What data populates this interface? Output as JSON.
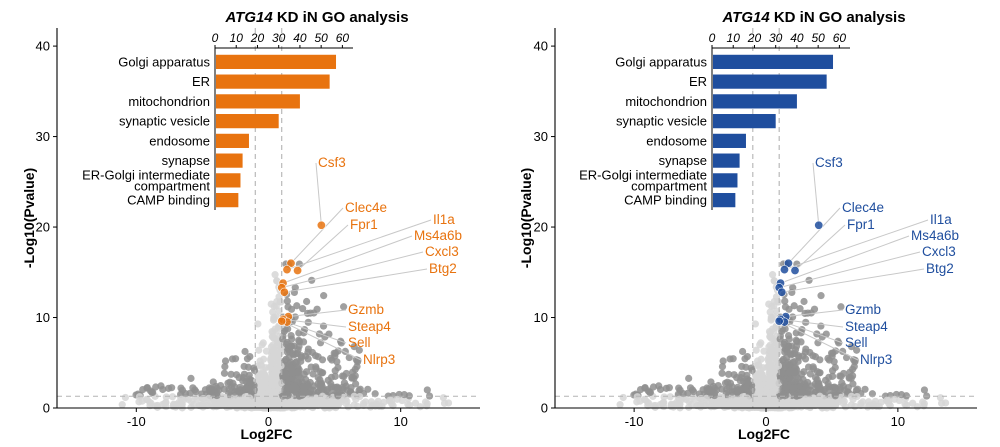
{
  "chart_data": [
    {
      "type": "scatter",
      "panel": "left",
      "accent_color": "#E8730F",
      "title_italic": "ATG14",
      "title_rest": " KD iN GO analysis",
      "xlabel": "Log2FC",
      "ylabel": "-Log10(Pvalue)",
      "xlim": [
        -16,
        16
      ],
      "ylim": [
        0,
        42
      ],
      "xticks": [
        -10,
        0,
        10
      ],
      "yticks": [
        0,
        10,
        20,
        30,
        40
      ],
      "thresholds": {
        "log2fc": [
          -1,
          1
        ],
        "neglog10p": 1.3
      },
      "highlighted_genes": [
        {
          "name": "Csf3",
          "x": 4.0,
          "y": 20.2
        },
        {
          "name": "Clec4e",
          "x": 1.7,
          "y": 16.0
        },
        {
          "name": "Fpr1",
          "x": 2.2,
          "y": 15.2
        },
        {
          "name": "Il1a",
          "x": 1.4,
          "y": 15.3
        },
        {
          "name": "Ms4a6b",
          "x": 1.1,
          "y": 13.8
        },
        {
          "name": "Cxcl3",
          "x": 1.0,
          "y": 13.3
        },
        {
          "name": "Btg2",
          "x": 1.2,
          "y": 12.8
        },
        {
          "name": "Gzmb",
          "x": 1.5,
          "y": 10.1
        },
        {
          "name": "Steap4",
          "x": 1.1,
          "y": 9.8
        },
        {
          "name": "Sell",
          "x": 1.4,
          "y": 9.5
        },
        {
          "name": "Nlrp3",
          "x": 1.0,
          "y": 9.6
        }
      ],
      "inset": {
        "type": "bar",
        "orientation": "horizontal",
        "categories": [
          "Golgi apparatus",
          "ER",
          "mitochondrion",
          "synaptic vesicle",
          "endosome",
          "synapse",
          "ER-Golgi intermediate compartment",
          "CAMP binding"
        ],
        "category_lines": [
          [
            "Golgi apparatus"
          ],
          [
            "ER"
          ],
          [
            "mitochondrion"
          ],
          [
            "synaptic vesicle"
          ],
          [
            "endosome"
          ],
          [
            "synapse"
          ],
          [
            "ER-Golgi intermediate",
            "compartment"
          ],
          [
            "CAMP binding"
          ]
        ],
        "values": [
          57,
          54,
          40,
          30,
          16,
          13,
          12,
          11
        ],
        "xlim": [
          0,
          65
        ],
        "xticks": [
          0,
          10,
          20,
          30,
          40,
          50,
          60
        ]
      }
    },
    {
      "type": "scatter",
      "panel": "right",
      "accent_color": "#1F4E9E",
      "title_italic": "ATG14",
      "title_rest": " KD iN GO analysis",
      "xlabel": "Log2FC",
      "ylabel": "-Log10(Pvalue)",
      "xlim": [
        -16,
        16
      ],
      "ylim": [
        0,
        42
      ],
      "xticks": [
        -10,
        0,
        10
      ],
      "yticks": [
        0,
        10,
        20,
        30,
        40
      ],
      "thresholds": {
        "log2fc": [
          -1,
          1
        ],
        "neglog10p": 1.3
      },
      "highlighted_genes": [
        {
          "name": "Csf3",
          "x": 4.0,
          "y": 20.2
        },
        {
          "name": "Clec4e",
          "x": 1.7,
          "y": 16.0
        },
        {
          "name": "Fpr1",
          "x": 2.2,
          "y": 15.2
        },
        {
          "name": "Il1a",
          "x": 1.4,
          "y": 15.3
        },
        {
          "name": "Ms4a6b",
          "x": 1.1,
          "y": 13.8
        },
        {
          "name": "Cxcl3",
          "x": 1.0,
          "y": 13.3
        },
        {
          "name": "Btg2",
          "x": 1.2,
          "y": 12.8
        },
        {
          "name": "Gzmb",
          "x": 1.5,
          "y": 10.1
        },
        {
          "name": "Steap4",
          "x": 1.1,
          "y": 9.8
        },
        {
          "name": "Sell",
          "x": 1.4,
          "y": 9.5
        },
        {
          "name": "Nlrp3",
          "x": 1.0,
          "y": 9.6
        }
      ],
      "inset": {
        "type": "bar",
        "orientation": "horizontal",
        "categories": [
          "Golgi apparatus",
          "ER",
          "mitochondrion",
          "synaptic vesicle",
          "endosome",
          "synapse",
          "ER-Golgi intermediate compartment",
          "CAMP binding"
        ],
        "category_lines": [
          [
            "Golgi apparatus"
          ],
          [
            "ER"
          ],
          [
            "mitochondrion"
          ],
          [
            "synaptic vesicle"
          ],
          [
            "endosome"
          ],
          [
            "synapse"
          ],
          [
            "ER-Golgi intermediate",
            "compartment"
          ],
          [
            "CAMP binding"
          ]
        ],
        "values": [
          57,
          54,
          40,
          30,
          16,
          13,
          12,
          11
        ],
        "xlim": [
          0,
          65
        ],
        "xticks": [
          0,
          10,
          20,
          30,
          40,
          50,
          60
        ]
      }
    }
  ]
}
